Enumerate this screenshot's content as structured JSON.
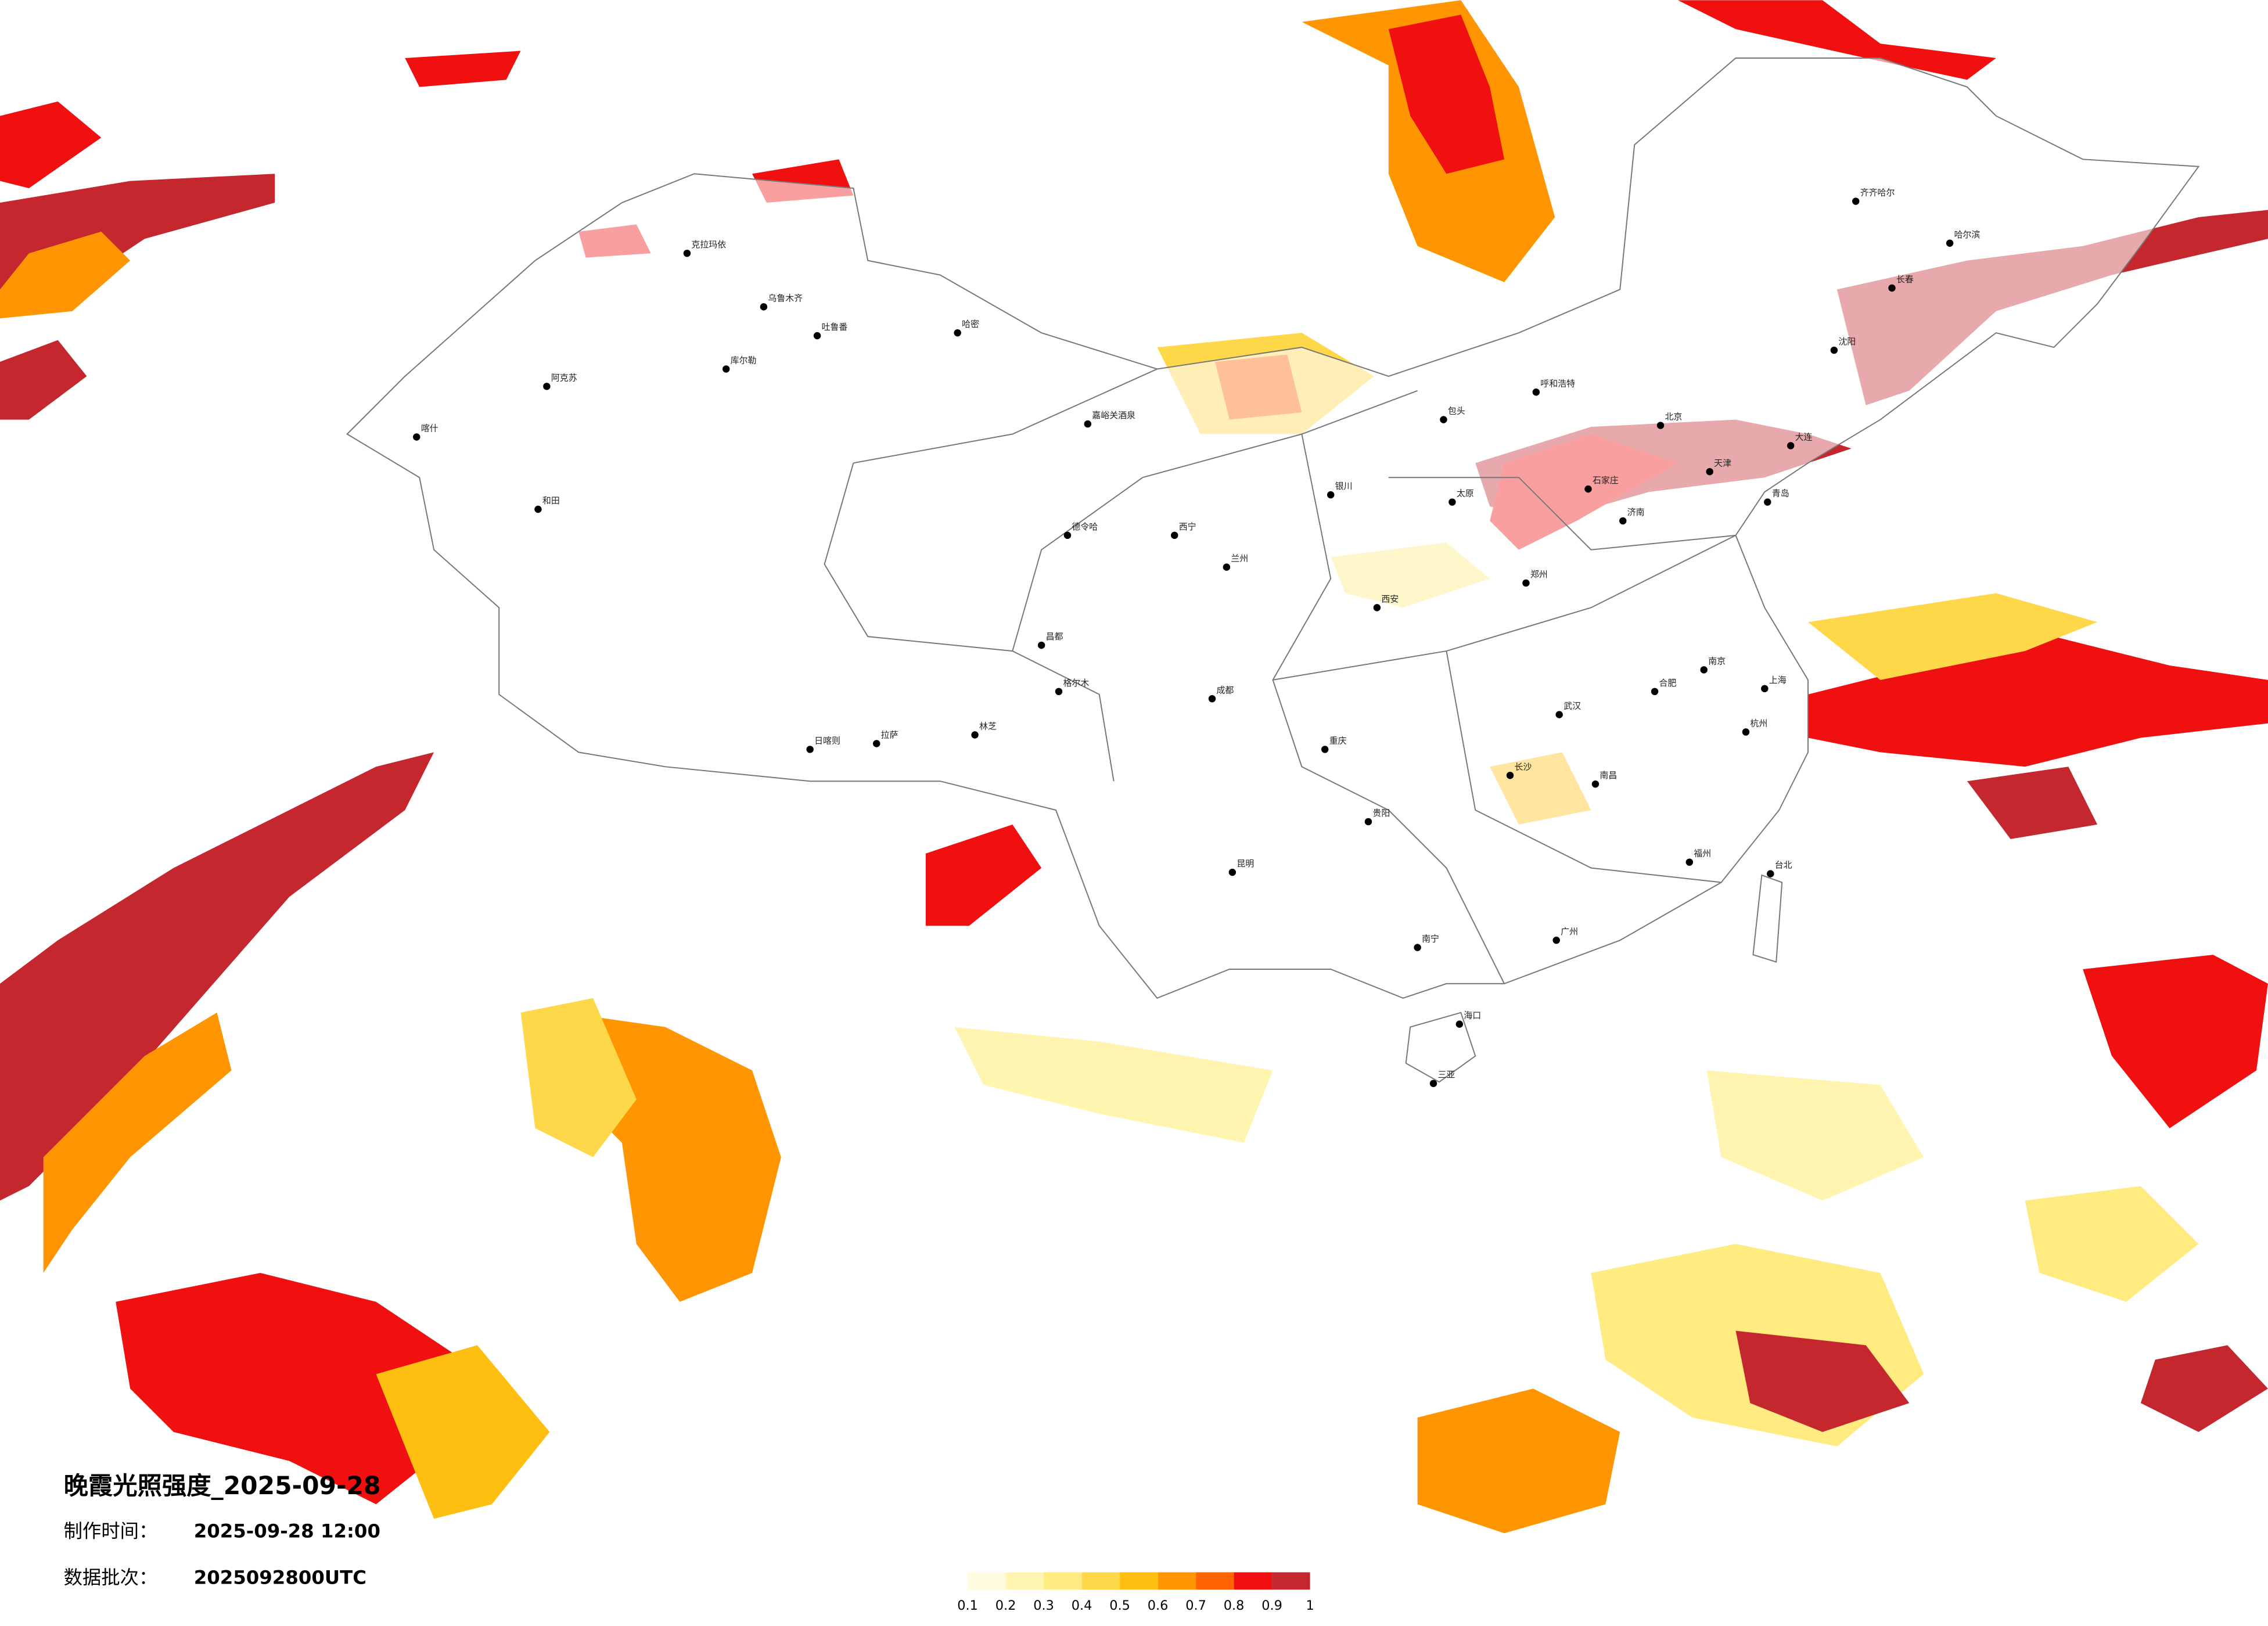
{
  "title": "晚霞光照强度_2025-09-28",
  "made_label": "制作时间：",
  "made_time": "2025-09-28 12:00",
  "batch_label": "数据批次：",
  "batch": "2025092800UTC",
  "legend": {
    "ticks": [
      0.1,
      0.2,
      0.3,
      0.4,
      0.5,
      0.6,
      0.7,
      0.8,
      0.9,
      1
    ],
    "colors": [
      "#fffbe0",
      "#fff5b0",
      "#ffeb80",
      "#ffd84a",
      "#ffbf10",
      "#ff9500",
      "#ff6400",
      "#f01010",
      "#c4282e"
    ]
  },
  "cities": [
    "克拉玛依",
    "乌鲁木齐",
    "吐鲁番",
    "库尔勒",
    "阿克苏",
    "喀什",
    "和田",
    "哈密",
    "嘉峪关酒泉",
    "德令哈",
    "格尔木",
    "拉萨",
    "日喀则",
    "林芝",
    "昌都",
    "西宁",
    "兰州",
    "银川",
    "呼和浩特",
    "包头",
    "北京",
    "天津",
    "石家庄",
    "太原",
    "西安",
    "郑州",
    "济南",
    "青岛",
    "南京",
    "上海",
    "杭州",
    "合肥",
    "武汉",
    "长沙",
    "南昌",
    "福州",
    "广州",
    "南宁",
    "海口",
    "贵阳",
    "昆明",
    "成都",
    "重庆",
    "沈阳",
    "长春",
    "哈尔滨",
    "齐齐哈尔",
    "大连",
    "台北",
    "三亚"
  ]
}
